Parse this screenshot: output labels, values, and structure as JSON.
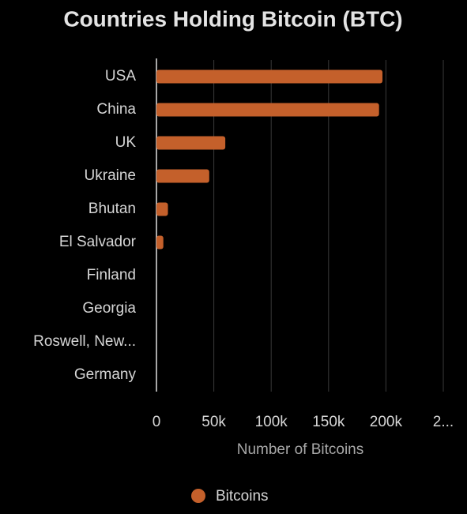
{
  "chart_data": {
    "type": "bar",
    "orientation": "horizontal",
    "title": "Countries Holding Bitcoin (BTC)",
    "categories": [
      "USA",
      "China",
      "UK",
      "Ukraine",
      "Bhutan",
      "El Salvador",
      "Finland",
      "Georgia",
      "Roswell, New...",
      "Germany"
    ],
    "series": [
      {
        "name": "Bitcoins",
        "color": "#c4602b",
        "values": [
          197000,
          194000,
          60000,
          46000,
          10000,
          6000,
          0,
          0,
          0,
          0
        ]
      }
    ],
    "xlabel": "Number of Bitcoins",
    "xlim": [
      0,
      250000
    ],
    "xticks": [
      0,
      {
        "value": 50000,
        "label": "50k"
      },
      {
        "value": 100000,
        "label": "100k"
      },
      {
        "value": 150000,
        "label": "150k"
      },
      {
        "value": 200000,
        "label": "200k"
      },
      {
        "value": 250000,
        "label": "2..."
      }
    ],
    "grid": true,
    "legend": "bottom"
  }
}
